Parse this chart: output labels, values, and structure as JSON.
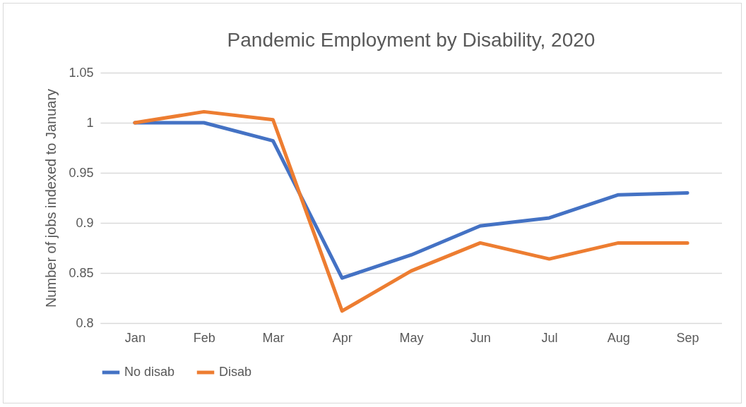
{
  "chart_data": {
    "type": "line",
    "title": "Pandemic Employment by Disability, 2020",
    "ylabel": "Number of jobs indexed to January",
    "categories": [
      "Jan",
      "Feb",
      "Mar",
      "Apr",
      "May",
      "Jun",
      "Jul",
      "Aug",
      "Sep"
    ],
    "series": [
      {
        "name": "No disab",
        "color": "#4472c4",
        "values": [
          1.0,
          1.0,
          0.982,
          0.845,
          0.868,
          0.897,
          0.905,
          0.928,
          0.93
        ]
      },
      {
        "name": "Disab",
        "color": "#ed7d31",
        "values": [
          1.0,
          1.011,
          1.003,
          0.812,
          0.852,
          0.88,
          0.864,
          0.88,
          0.88
        ]
      }
    ],
    "ylim": [
      0.8,
      1.05
    ],
    "yticks": [
      0.8,
      {
        "value": 0.85,
        "label": "0.85"
      },
      {
        "value": 0.9,
        "label": "0.9"
      },
      {
        "value": 0.95,
        "label": "0.95"
      },
      1,
      {
        "value": 1.05,
        "label": "1.05"
      }
    ],
    "grid": "y",
    "legend": "bottom",
    "marker": "none",
    "line_style": "solid"
  }
}
